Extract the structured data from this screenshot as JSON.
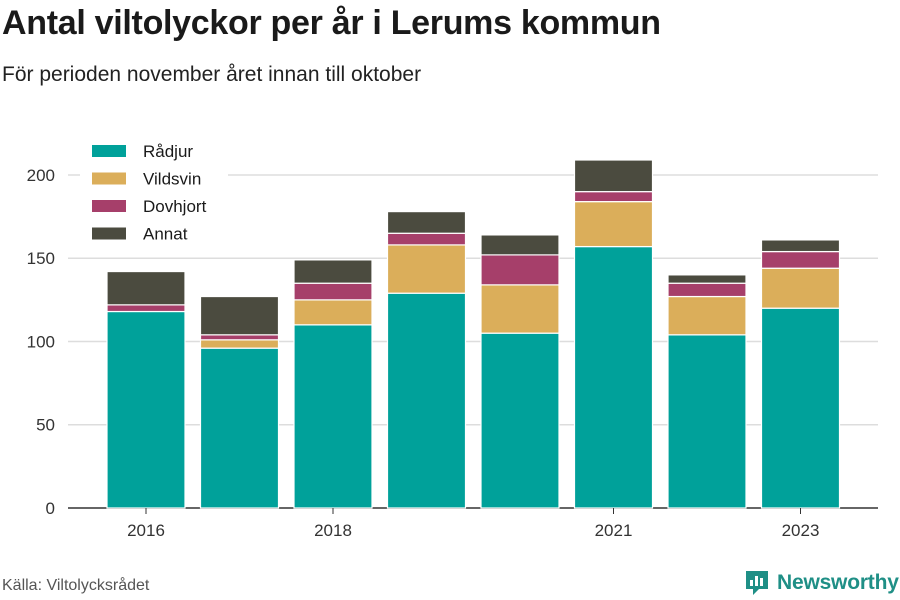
{
  "header": {
    "title": "Antal viltolyckor per år i Lerums kommun",
    "subtitle": "För perioden november året innan till oktober"
  },
  "footer": {
    "source": "Källa: Viltolycksrådet",
    "brand": "Newsworthy"
  },
  "colors": {
    "Rådjur": "#00a19a",
    "Vildsvin": "#dbae5a",
    "Dovhjort": "#a63f6a",
    "Annat": "#4b4b3f",
    "grid": "#dddddd",
    "axis": "#333333",
    "brand": "#1f8f86"
  },
  "chart_data": {
    "type": "bar",
    "stacked": true,
    "categories": [
      "2016",
      "2017",
      "2018",
      "2019",
      "2020",
      "2021",
      "2022",
      "2023"
    ],
    "x_tick_labels": [
      "2016",
      "",
      "2018",
      "",
      "",
      "2021",
      "",
      "2023"
    ],
    "series": [
      {
        "name": "Rådjur",
        "values": [
          118,
          96,
          110,
          129,
          105,
          157,
          104,
          120
        ]
      },
      {
        "name": "Vildsvin",
        "values": [
          0,
          5,
          15,
          29,
          29,
          27,
          23,
          24
        ]
      },
      {
        "name": "Dovhjort",
        "values": [
          4,
          3,
          10,
          7,
          18,
          6,
          8,
          10
        ]
      },
      {
        "name": "Annat",
        "values": [
          20,
          23,
          14,
          13,
          12,
          19,
          5,
          7
        ]
      }
    ],
    "y_ticks": [
      0,
      50,
      100,
      150,
      200
    ],
    "ylim": [
      0,
      215
    ],
    "grid": true,
    "legend": {
      "position": "top-left",
      "entries": [
        "Rådjur",
        "Vildsvin",
        "Dovhjort",
        "Annat"
      ]
    }
  }
}
